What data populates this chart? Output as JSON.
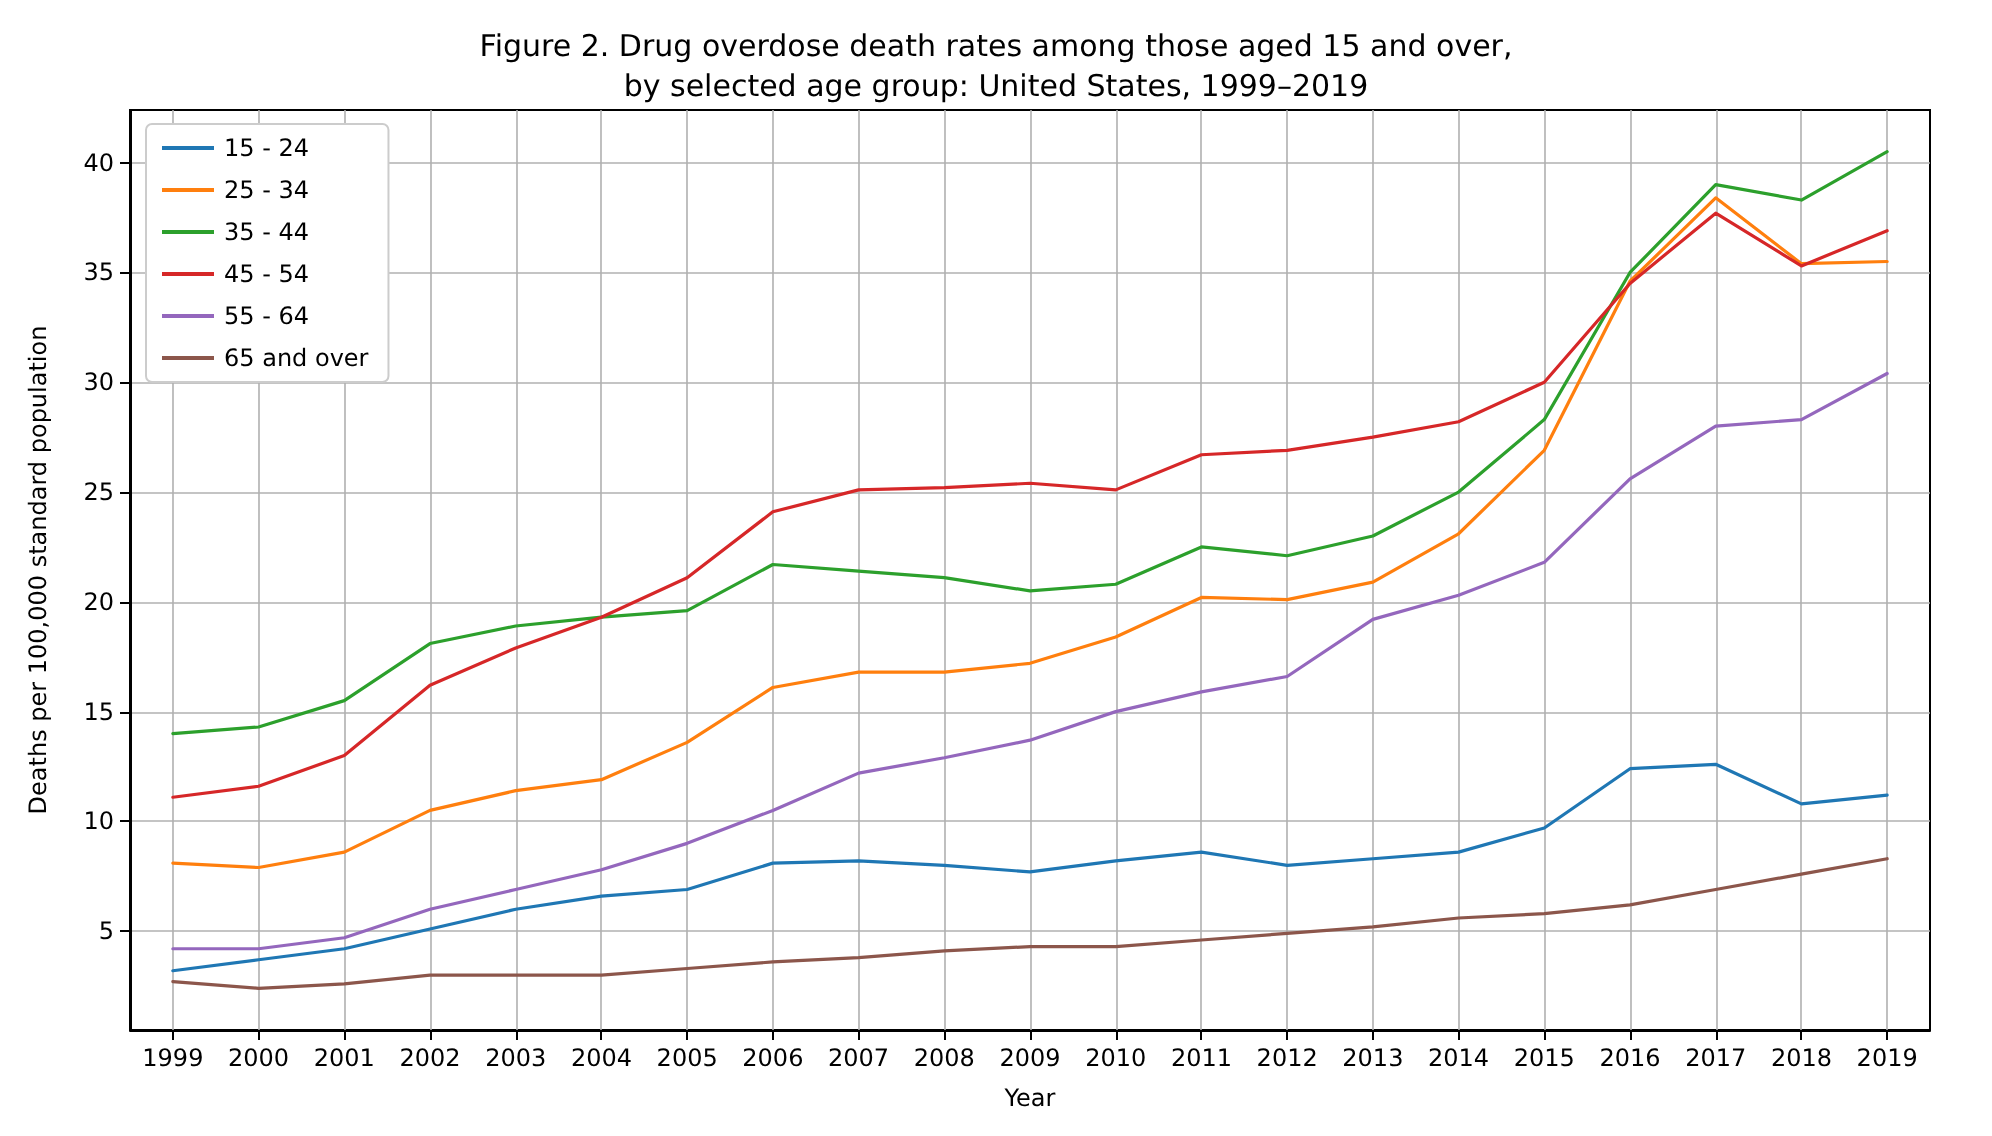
{
  "chart_data": {
    "type": "line",
    "title": "Figure 2. Drug overdose death rates among those aged 15 and over,\nby selected age group: United States, 1999–2019",
    "xlabel": "Year",
    "ylabel": "Deaths per 100,000 standard population",
    "categories": [
      "1999",
      "2000",
      "2001",
      "2002",
      "2003",
      "2004",
      "2005",
      "2006",
      "2007",
      "2008",
      "2009",
      "2010",
      "2011",
      "2012",
      "2013",
      "2014",
      "2015",
      "2016",
      "2017",
      "2018",
      "2019"
    ],
    "series": [
      {
        "name": "15 - 24",
        "color": "#1f77b4",
        "values": [
          3.2,
          3.7,
          4.2,
          5.1,
          6.0,
          6.6,
          6.9,
          8.1,
          8.2,
          8.0,
          7.7,
          8.2,
          8.6,
          8.0,
          8.3,
          8.6,
          9.7,
          12.4,
          12.6,
          10.8,
          11.2
        ]
      },
      {
        "name": "25 - 34",
        "color": "#ff7f0e",
        "values": [
          8.1,
          7.9,
          8.6,
          10.5,
          11.4,
          11.9,
          13.6,
          16.1,
          16.8,
          16.8,
          17.2,
          18.4,
          20.2,
          20.1,
          20.9,
          23.1,
          26.9,
          34.6,
          38.4,
          35.4,
          35.5
        ]
      },
      {
        "name": "35 - 44",
        "color": "#2ca02c",
        "values": [
          14.0,
          14.3,
          15.5,
          18.1,
          18.9,
          19.3,
          19.6,
          21.7,
          21.4,
          21.1,
          20.5,
          20.8,
          22.5,
          22.1,
          23.0,
          25.0,
          28.3,
          35.0,
          39.0,
          38.3,
          40.5
        ]
      },
      {
        "name": "45 - 54",
        "color": "#d62728",
        "values": [
          11.1,
          11.6,
          13.0,
          16.2,
          17.9,
          19.3,
          21.1,
          24.1,
          25.1,
          25.2,
          25.4,
          25.1,
          26.7,
          26.9,
          27.5,
          28.2,
          30.0,
          34.5,
          37.7,
          35.3,
          36.9
        ]
      },
      {
        "name": "55 - 64",
        "color": "#9467bd",
        "values": [
          4.2,
          4.2,
          4.7,
          6.0,
          6.9,
          7.8,
          9.0,
          10.5,
          12.2,
          12.9,
          13.7,
          15.0,
          15.9,
          16.6,
          19.2,
          20.3,
          21.8,
          25.6,
          28.0,
          28.3,
          30.4
        ]
      },
      {
        "name": "65 and over",
        "color": "#8c564b",
        "values": [
          2.7,
          2.4,
          2.6,
          3.0,
          3.0,
          3.0,
          3.3,
          3.6,
          3.8,
          4.1,
          4.3,
          4.3,
          4.6,
          4.9,
          5.2,
          5.6,
          5.8,
          6.2,
          6.9,
          7.6,
          8.3
        ]
      }
    ],
    "ylim": [
      0.5,
      42.4
    ],
    "yticks": [
      5,
      10,
      15,
      20,
      25,
      30,
      35,
      40
    ],
    "grid": true,
    "legend": "top left",
    "marker": "none",
    "line_style": "solid"
  }
}
